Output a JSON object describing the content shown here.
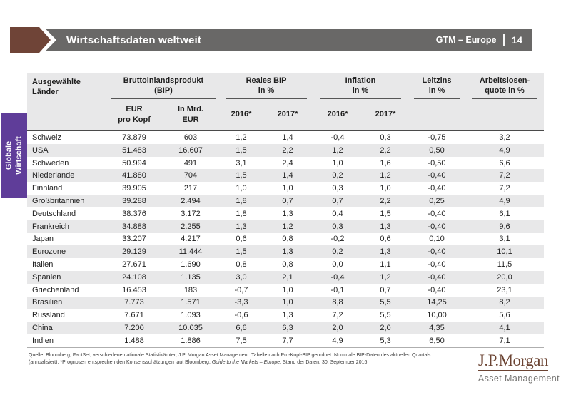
{
  "slide": {
    "title": "Wirtschaftsdaten weltweit",
    "gtm_label": "GTM – Europe",
    "page_number": "14",
    "side_tab": "Globale\nWirtschaft"
  },
  "colors": {
    "topbar_gray": "#696867",
    "arrow_brown": "#6f4437",
    "tab_purple": "#5f3d99",
    "row_stripe": "#e8e8e9",
    "logo_brown": "#6b4332"
  },
  "table": {
    "country_header": "Ausgewählte\nLänder",
    "groups": [
      {
        "label": "Bruttoinlandsprodukt\n(BIP)"
      },
      {
        "label": "Reales BIP\nin %"
      },
      {
        "label": "Inflation\nin %"
      },
      {
        "label": "Leitzins\nin %"
      },
      {
        "label": "Arbeitslosen-\nquote in %"
      }
    ],
    "subheaders": [
      "EUR\npro Kopf",
      "In Mrd.\nEUR",
      "2016*",
      "2017*",
      "2016*",
      "2017*"
    ],
    "rows": [
      {
        "country": "Schweiz",
        "values": [
          "73.879",
          "603",
          "1,2",
          "1,4",
          "-0,4",
          "0,3",
          "-0,75",
          "3,2"
        ]
      },
      {
        "country": "USA",
        "values": [
          "51.483",
          "16.607",
          "1,5",
          "2,2",
          "1,2",
          "2,2",
          "0,50",
          "4,9"
        ]
      },
      {
        "country": "Schweden",
        "values": [
          "50.994",
          "491",
          "3,1",
          "2,4",
          "1,0",
          "1,6",
          "-0,50",
          "6,6"
        ]
      },
      {
        "country": "Niederlande",
        "values": [
          "41.880",
          "704",
          "1,5",
          "1,4",
          "0,2",
          "1,2",
          "-0,40",
          "7,2"
        ]
      },
      {
        "country": "Finnland",
        "values": [
          "39.905",
          "217",
          "1,0",
          "1,0",
          "0,3",
          "1,0",
          "-0,40",
          "7,2"
        ]
      },
      {
        "country": "Großbritannien",
        "values": [
          "39.288",
          "2.494",
          "1,8",
          "0,7",
          "0,7",
          "2,2",
          "0,25",
          "4,9"
        ]
      },
      {
        "country": "Deutschland",
        "values": [
          "38.376",
          "3.172",
          "1,8",
          "1,3",
          "0,4",
          "1,5",
          "-0,40",
          "6,1"
        ]
      },
      {
        "country": "Frankreich",
        "values": [
          "34.888",
          "2.255",
          "1,3",
          "1,2",
          "0,3",
          "1,3",
          "-0,40",
          "9,6"
        ]
      },
      {
        "country": "Japan",
        "values": [
          "33.207",
          "4.217",
          "0,6",
          "0,8",
          "-0,2",
          "0,6",
          "0,10",
          "3,1"
        ]
      },
      {
        "country": "Eurozone",
        "values": [
          "29.129",
          "11.444",
          "1,5",
          "1,3",
          "0,2",
          "1,3",
          "-0,40",
          "10,1"
        ]
      },
      {
        "country": "Italien",
        "values": [
          "27.671",
          "1.690",
          "0,8",
          "0,8",
          "0,0",
          "1,1",
          "-0,40",
          "11,5"
        ]
      },
      {
        "country": "Spanien",
        "values": [
          "24.108",
          "1.135",
          "3,0",
          "2,1",
          "-0,4",
          "1,2",
          "-0,40",
          "20,0"
        ]
      },
      {
        "country": "Griechenland",
        "values": [
          "16.453",
          "183",
          "-0,7",
          "1,0",
          "-0,1",
          "0,7",
          "-0,40",
          "23,1"
        ]
      },
      {
        "country": "Brasilien",
        "values": [
          "7.773",
          "1.571",
          "-3,3",
          "1,0",
          "8,8",
          "5,5",
          "14,25",
          "8,2"
        ]
      },
      {
        "country": "Russland",
        "values": [
          "7.671",
          "1.093",
          "-0,6",
          "1,3",
          "7,2",
          "5,5",
          "10,00",
          "5,6"
        ]
      },
      {
        "country": "China",
        "values": [
          "7.200",
          "10.035",
          "6,6",
          "6,3",
          "2,0",
          "2,0",
          "4,35",
          "4,1"
        ]
      },
      {
        "country": "Indien",
        "values": [
          "1.488",
          "1.886",
          "7,5",
          "7,7",
          "4,9",
          "5,3",
          "6,50",
          "7,1"
        ]
      }
    ]
  },
  "footer": {
    "part1": "Quelle: Bloomberg, FactSet, verschiedene nationale Statistikämter, J.P. Morgan Asset Management. Tabelle nach Pro-Kopf-BIP geordnet. Nominale BIP-Daten des aktuellen Quartals\n(annualisiert). *Prognosen entsprechen den Konsensschätzungen laut Bloomberg. ",
    "italic": "Guide to the Markets – Europe.",
    "part2": " Stand der Daten: 30. September 2016."
  },
  "logo": {
    "wordmark": "J.P.Morgan",
    "subtitle": "Asset Management"
  }
}
